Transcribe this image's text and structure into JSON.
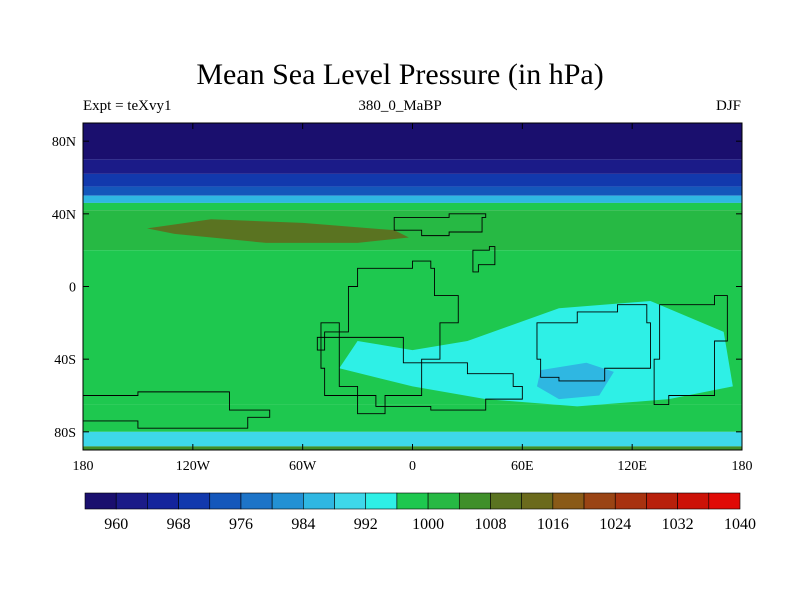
{
  "chart_data": {
    "type": "contour-map",
    "title": "Mean Sea Level Pressure (in hPa)",
    "left_string": "Expt = teXvy1",
    "center_string": "380_0_MaBP",
    "right_string": "DJF",
    "x_ticks": [
      "180",
      "120W",
      "60W",
      "0",
      "60E",
      "120E",
      "180"
    ],
    "x_tick_values": [
      -180,
      -120,
      -60,
      0,
      60,
      120,
      180
    ],
    "y_ticks": [
      "80N",
      "40N",
      "0",
      "40S",
      "80S"
    ],
    "y_tick_values": [
      80,
      40,
      0,
      -40,
      -80
    ],
    "lon_range": [
      -180,
      180
    ],
    "lat_range": [
      -90,
      90
    ],
    "colorbar": {
      "colors": [
        "#1a0f6e",
        "#1b1b88",
        "#14249c",
        "#1239ad",
        "#1457bb",
        "#1d74c8",
        "#2391d4",
        "#2fb7e2",
        "#3ed8ea",
        "#2ef0e6",
        "#1ec84f",
        "#27b944",
        "#3f8f2a",
        "#5a7321",
        "#6b6a1c",
        "#8a5a17",
        "#9a4414",
        "#a8320f",
        "#b8200b",
        "#cc1207",
        "#e00a06"
      ],
      "labels": [
        "960",
        "968",
        "976",
        "984",
        "992",
        "1000",
        "1008",
        "1016",
        "1024",
        "1032",
        "1040"
      ]
    },
    "field_bands": [
      {
        "lat_top": 90,
        "lat_bottom": 70,
        "level": 956
      },
      {
        "lat_top": 70,
        "lat_bottom": 62,
        "level": 962
      },
      {
        "lat_top": 62,
        "lat_bottom": 55,
        "level": 968
      },
      {
        "lat_top": 55,
        "lat_bottom": 50,
        "level": 975
      },
      {
        "lat_top": 50,
        "lat_bottom": 46,
        "level": 985
      },
      {
        "lat_top": 46,
        "lat_bottom": 42,
        "level": 996
      },
      {
        "lat_top": 42,
        "lat_bottom": 20,
        "level": 1003
      },
      {
        "lat_top": 20,
        "lat_bottom": -65,
        "level": 998
      },
      {
        "lat_top": -65,
        "lat_bottom": -80,
        "level": 996
      },
      {
        "lat_top": -80,
        "lat_bottom": -88,
        "level": 990
      },
      {
        "lat_top": -88,
        "lat_bottom": -90,
        "level": 1004
      }
    ],
    "features": [
      {
        "name": "high-pressure-cell-northern",
        "level": 1010,
        "points": [
          [
            -145,
            32
          ],
          [
            -110,
            37
          ],
          [
            -60,
            35
          ],
          [
            -10,
            31
          ],
          [
            -2,
            27
          ],
          [
            -30,
            24
          ],
          [
            -80,
            24
          ],
          [
            -130,
            29
          ]
        ]
      },
      {
        "name": "low-pressure-cell-southern",
        "level": 984,
        "points": [
          [
            70,
            -46
          ],
          [
            95,
            -42
          ],
          [
            110,
            -47
          ],
          [
            102,
            -60
          ],
          [
            80,
            -62
          ],
          [
            68,
            -55
          ]
        ]
      },
      {
        "name": "trough-southern-ocean",
        "level": 992,
        "points": [
          [
            -30,
            -30
          ],
          [
            0,
            -35
          ],
          [
            30,
            -30
          ],
          [
            80,
            -12
          ],
          [
            130,
            -8
          ],
          [
            170,
            -25
          ],
          [
            175,
            -55
          ],
          [
            140,
            -62
          ],
          [
            90,
            -66
          ],
          [
            40,
            -62
          ],
          [
            0,
            -55
          ],
          [
            -40,
            -45
          ]
        ]
      }
    ],
    "land_outlines": [
      [
        [
          -10,
          38
        ],
        [
          20,
          40
        ],
        [
          40,
          38
        ],
        [
          38,
          30
        ],
        [
          20,
          28
        ],
        [
          5,
          31
        ],
        [
          -10,
          34
        ]
      ],
      [
        [
          -30,
          10
        ],
        [
          0,
          14
        ],
        [
          10,
          10
        ],
        [
          12,
          -5
        ],
        [
          25,
          -20
        ],
        [
          15,
          -40
        ],
        [
          5,
          -60
        ],
        [
          -15,
          -70
        ],
        [
          -30,
          -55
        ],
        [
          -40,
          -25
        ],
        [
          -35,
          0
        ]
      ],
      [
        [
          -50,
          -28
        ],
        [
          -5,
          -42
        ],
        [
          30,
          -48
        ],
        [
          55,
          -55
        ],
        [
          60,
          -62
        ],
        [
          40,
          -68
        ],
        [
          10,
          -66
        ],
        [
          -20,
          -60
        ],
        [
          -48,
          -45
        ]
      ],
      [
        [
          68,
          -20
        ],
        [
          90,
          -14
        ],
        [
          112,
          -10
        ],
        [
          128,
          -20
        ],
        [
          130,
          -45
        ],
        [
          105,
          -52
        ],
        [
          80,
          -50
        ],
        [
          70,
          -40
        ]
      ],
      [
        [
          135,
          -10
        ],
        [
          165,
          -5
        ],
        [
          172,
          -30
        ],
        [
          165,
          -60
        ],
        [
          140,
          -65
        ],
        [
          132,
          -40
        ]
      ],
      [
        [
          -180,
          -60
        ],
        [
          -150,
          -58
        ],
        [
          -100,
          -68
        ],
        [
          -78,
          -72
        ],
        [
          -90,
          -78
        ],
        [
          -150,
          -74
        ],
        [
          -180,
          -70
        ]
      ],
      [
        [
          33,
          20
        ],
        [
          42,
          22
        ],
        [
          45,
          12
        ],
        [
          36,
          8
        ]
      ],
      [
        [
          -50,
          -20
        ],
        [
          -40,
          -25
        ],
        [
          -48,
          -35
        ],
        [
          -52,
          -28
        ]
      ]
    ]
  }
}
